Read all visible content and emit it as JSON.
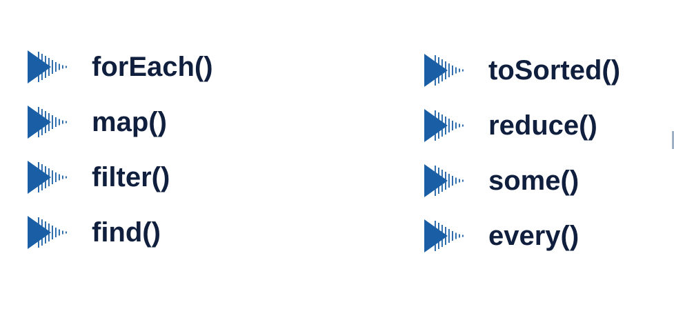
{
  "colors": {
    "bullet": "#1a5fa6",
    "text": "#0f1f3d",
    "background": "#ffffff"
  },
  "bullet_icon": "arrow-play-striped-icon",
  "left_column": [
    {
      "label": "forEach()"
    },
    {
      "label": "map()"
    },
    {
      "label": "filter()"
    },
    {
      "label": "find()"
    }
  ],
  "right_column": [
    {
      "label": "toSorted()"
    },
    {
      "label": "reduce()"
    },
    {
      "label": "some()"
    },
    {
      "label": "every()"
    }
  ]
}
